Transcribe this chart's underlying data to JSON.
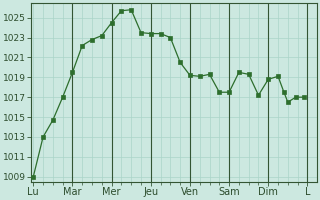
{
  "background_color": "#cce8e0",
  "grid_color": "#aad4c8",
  "line_color": "#2d6e2d",
  "marker_color": "#2d6e2d",
  "ylim": [
    1008.5,
    1026.5
  ],
  "yticks": [
    1009,
    1011,
    1013,
    1015,
    1017,
    1019,
    1021,
    1023,
    1025
  ],
  "y_values": [
    1009,
    1013,
    1014.7,
    1017,
    1019.5,
    1022.2,
    1022.8,
    1023.2,
    1024.5,
    1025.7,
    1025.8,
    1023.5,
    1023.4,
    1023.4,
    1023.0,
    1020.5,
    1019.2,
    1019.1,
    1019.3,
    1017.5,
    1017.5,
    1019.5,
    1019.3,
    1017.2,
    1018.8,
    1019.1,
    1017.5,
    1016.5,
    1017.0,
    1017.0
  ],
  "x_values": [
    0,
    0.5,
    1.0,
    1.5,
    2.0,
    2.5,
    3.0,
    3.5,
    4.0,
    4.5,
    5.0,
    5.5,
    6.0,
    6.5,
    7.0,
    7.5,
    8.0,
    8.5,
    9.0,
    9.5,
    10.0,
    10.5,
    11.0,
    11.5,
    12.0,
    12.5,
    12.8,
    13.0,
    13.4,
    13.8
  ],
  "x_tick_positions": [
    0,
    2,
    4,
    6,
    8,
    10,
    12,
    14
  ],
  "x_tick_labels": [
    "Lu",
    "Mar",
    "Mer",
    "Jeu",
    "Ven",
    "Sam",
    "Dim",
    "L"
  ],
  "vline_color": "#335533",
  "vline_positions": [
    2,
    4,
    6,
    8,
    10,
    12,
    14
  ],
  "minor_xtick_positions": [
    0,
    0.5,
    1.0,
    1.5,
    2.0,
    2.5,
    3.0,
    3.5,
    4.0,
    4.5,
    5.0,
    5.5,
    6.0,
    6.5,
    7.0,
    7.5,
    8.0,
    8.5,
    9.0,
    9.5,
    10.0,
    10.5,
    11.0,
    11.5,
    12.0,
    12.5,
    13.0,
    13.5,
    14.0
  ],
  "ylabel_fontsize": 6.5,
  "xlabel_fontsize": 7
}
